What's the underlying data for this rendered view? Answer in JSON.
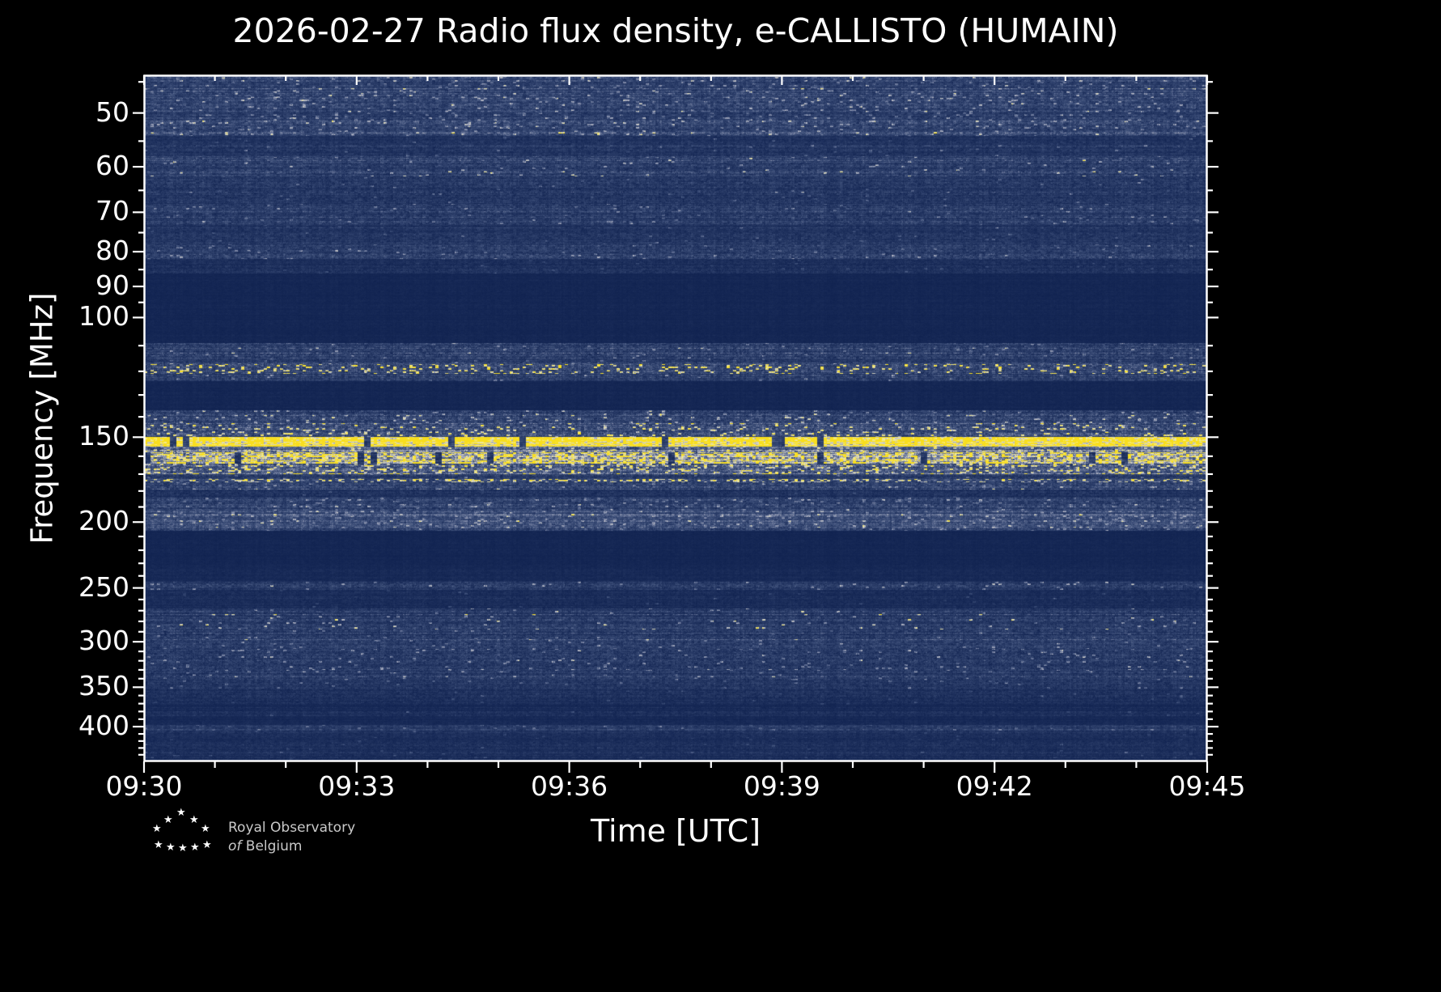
{
  "page": {
    "background": "#000000"
  },
  "logo": {
    "line1": "Royal Observatory",
    "line2_italic": "of ",
    "line2_rest": "Belgium"
  },
  "chart_data": {
    "type": "heatmap",
    "subtype": "radio-spectrogram",
    "title": "2026-02-27 Radio flux density, e-CALLISTO (HUMAIN)",
    "date": "2026-02-27",
    "instrument": "e-CALLISTO",
    "station": "HUMAIN",
    "xlabel": "Time [UTC]",
    "ylabel": "Frequency [MHz]",
    "x_ticks": [
      "09:30",
      "09:33",
      "09:36",
      "09:39",
      "09:42",
      "09:45"
    ],
    "x_tick_minutes": [
      0,
      3,
      6,
      9,
      12,
      15
    ],
    "x_range_minutes": [
      0,
      15
    ],
    "x_minor_every_min": 1,
    "y_ticks": [
      50,
      60,
      70,
      80,
      90,
      100,
      150,
      200,
      250,
      300,
      350,
      400
    ],
    "y_scale": "log",
    "y_axis_inverted": true,
    "freq_range_mhz": [
      44,
      450
    ],
    "background_color": "#0d1f4d",
    "signal_color": "#f8de1e",
    "colormap": {
      "stops": [
        [
          0.0,
          [
            13,
            31,
            77
          ]
        ],
        [
          0.25,
          [
            62,
            80,
            122
          ]
        ],
        [
          0.45,
          [
            128,
            138,
            168
          ]
        ],
        [
          0.65,
          [
            202,
            202,
            206
          ]
        ],
        [
          0.8,
          [
            246,
            238,
            150
          ]
        ],
        [
          1.0,
          [
            248,
            222,
            30
          ]
        ]
      ]
    },
    "bands": [
      {
        "f": [
          44,
          54
        ],
        "base": 0.13,
        "noise": 0.12,
        "sp": 0.05,
        "spg": 0.25
      },
      {
        "f": [
          54,
          58
        ],
        "base": 0.07,
        "noise": 0.08,
        "sp": 0.01,
        "spg": 0.15
      },
      {
        "f": [
          58,
          62
        ],
        "base": 0.11,
        "noise": 0.12,
        "sp": 0.02,
        "spg": 0.3
      },
      {
        "f": [
          62,
          68
        ],
        "base": 0.08,
        "noise": 0.1,
        "sp": 0.01,
        "spg": 0.15
      },
      {
        "f": [
          68,
          73
        ],
        "base": 0.11,
        "noise": 0.12,
        "sp": 0.02,
        "spg": 0.2
      },
      {
        "f": [
          73,
          78
        ],
        "base": 0.08,
        "noise": 0.09,
        "sp": 0.01,
        "spg": 0.15
      },
      {
        "f": [
          78,
          82
        ],
        "base": 0.1,
        "noise": 0.11,
        "sp": 0.02,
        "spg": 0.2
      },
      {
        "f": [
          82,
          86
        ],
        "base": 0.05,
        "noise": 0.07,
        "sp": 0.01,
        "spg": 0.1
      },
      {
        "f": [
          86,
          109
        ],
        "base": 0.015,
        "noise": 0.02,
        "sp": 0,
        "spg": 0
      },
      {
        "f": [
          109,
          117
        ],
        "base": 0.11,
        "noise": 0.13,
        "sp": 0.02,
        "spg": 0.2
      },
      {
        "f": [
          117,
          121
        ],
        "base": 0.13,
        "noise": 0.15,
        "sp": 0.16,
        "spg": 0.55
      },
      {
        "f": [
          121,
          124
        ],
        "base": 0.11,
        "noise": 0.12,
        "sp": 0.02,
        "spg": 0.2
      },
      {
        "f": [
          124,
          137
        ],
        "base": 0.015,
        "noise": 0.02,
        "sp": 0,
        "spg": 0
      },
      {
        "f": [
          137,
          143
        ],
        "base": 0.12,
        "noise": 0.15,
        "sp": 0.05,
        "spg": 0.3
      },
      {
        "f": [
          143,
          150
        ],
        "base": 0.16,
        "noise": 0.18,
        "sp": 0.1,
        "spg": 0.45
      },
      {
        "f": [
          150,
          155
        ],
        "base": 0.85,
        "noise": 0.12,
        "sp": 0.3,
        "spg": 0.12,
        "drop": 0.06
      },
      {
        "f": [
          155,
          158
        ],
        "base": 0.22,
        "noise": 0.2,
        "sp": 0.08,
        "spg": 0.3
      },
      {
        "f": [
          158,
          164
        ],
        "base": 0.4,
        "noise": 0.3,
        "sp": 0.35,
        "spg": 0.5,
        "drop": 0.05
      },
      {
        "f": [
          164,
          170
        ],
        "base": 0.2,
        "noise": 0.2,
        "sp": 0.18,
        "spg": 0.45
      },
      {
        "f": [
          170,
          173
        ],
        "base": 0.1,
        "noise": 0.12,
        "sp": 0.02,
        "spg": 0.2
      },
      {
        "f": [
          173,
          175
        ],
        "base": 0.18,
        "noise": 0.15,
        "sp": 0.3,
        "spg": 0.6
      },
      {
        "f": [
          175,
          179
        ],
        "base": 0.12,
        "noise": 0.13,
        "sp": 0.03,
        "spg": 0.2
      },
      {
        "f": [
          179,
          184
        ],
        "base": 0.06,
        "noise": 0.08,
        "sp": 0.01,
        "spg": 0.1
      },
      {
        "f": [
          184,
          206
        ],
        "base": 0.12,
        "noise": 0.13,
        "sp": 0.04,
        "spg": 0.2
      },
      {
        "f": [
          192,
          204
        ],
        "base": 0.05,
        "noise": 0.05,
        "sp": 0.02,
        "spg": 0.25
      },
      {
        "f": [
          206,
          232
        ],
        "base": 0.015,
        "noise": 0.02,
        "sp": 0,
        "spg": 0
      },
      {
        "f": [
          232,
          245
        ],
        "base": 0.025,
        "noise": 0.03,
        "sp": 0,
        "spg": 0
      },
      {
        "f": [
          245,
          252
        ],
        "base": 0.09,
        "noise": 0.11,
        "sp": 0.03,
        "spg": 0.25
      },
      {
        "f": [
          252,
          268
        ],
        "base": 0.035,
        "noise": 0.05,
        "sp": 0.01,
        "spg": 0.1
      },
      {
        "f": [
          268,
          278
        ],
        "base": 0.09,
        "noise": 0.11,
        "sp": 0.02,
        "spg": 0.3
      },
      {
        "f": [
          278,
          288
        ],
        "base": 0.11,
        "noise": 0.12,
        "sp": 0.03,
        "spg": 0.4
      },
      {
        "f": [
          288,
          298
        ],
        "base": 0.08,
        "noise": 0.1,
        "sp": 0.01,
        "spg": 0.15
      },
      {
        "f": [
          298,
          308
        ],
        "base": 0.1,
        "noise": 0.11,
        "sp": 0.02,
        "spg": 0.2
      },
      {
        "f": [
          308,
          330
        ],
        "base": 0.09,
        "noise": 0.12,
        "sp": 0.04,
        "spg": 0.25
      },
      {
        "f": [
          330,
          352
        ],
        "base": 0.09,
        "noise": 0.11,
        "sp": 0.02,
        "spg": 0.2
      },
      {
        "f": [
          352,
          362
        ],
        "base": 0.05,
        "noise": 0.07,
        "sp": 0.01,
        "spg": 0.1
      },
      {
        "f": [
          362,
          372
        ],
        "base": 0.045,
        "noise": 0.07,
        "sp": 0.01,
        "spg": 0.1
      },
      {
        "f": [
          372,
          380
        ],
        "base": 0.025,
        "noise": 0.04,
        "sp": 0,
        "spg": 0
      },
      {
        "f": [
          380,
          386
        ],
        "base": 0.05,
        "noise": 0.07,
        "sp": 0.01,
        "spg": 0.1
      },
      {
        "f": [
          386,
          398
        ],
        "base": 0.025,
        "noise": 0.03,
        "sp": 0,
        "spg": 0
      },
      {
        "f": [
          398,
          406
        ],
        "base": 0.13,
        "noise": 0.1,
        "sp": 0.02,
        "spg": 0.2
      },
      {
        "f": [
          406,
          416
        ],
        "base": 0.05,
        "noise": 0.06,
        "sp": 0.01,
        "spg": 0.1
      },
      {
        "f": [
          416,
          450
        ],
        "base": 0.045,
        "noise": 0.06,
        "sp": 0.01,
        "spg": 0.1
      }
    ]
  }
}
